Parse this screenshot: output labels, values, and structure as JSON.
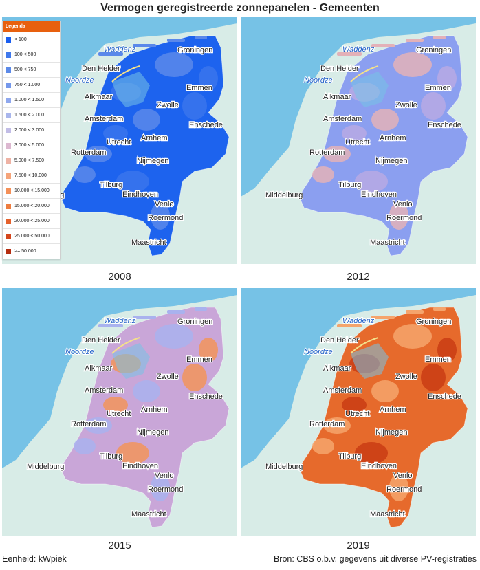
{
  "title": "Vermogen geregistreerde zonnepanelen - Gemeenten",
  "legend": {
    "title": "Legenda",
    "items": [
      {
        "label": "< 100",
        "color": "#1a5ef0"
      },
      {
        "label": "100 < 500",
        "color": "#3f78ec"
      },
      {
        "label": "500 < 750",
        "color": "#5c8ae8"
      },
      {
        "label": "750 < 1.000",
        "color": "#7598eb"
      },
      {
        "label": "1.000 < 1.500",
        "color": "#8fa8ee"
      },
      {
        "label": "1.500 < 2.000",
        "color": "#a9b6ec"
      },
      {
        "label": "2.000 < 3.000",
        "color": "#c2bde6"
      },
      {
        "label": "3.000 < 5.000",
        "color": "#dcb8d0"
      },
      {
        "label": "5.000 < 7.500",
        "color": "#eeb2a4"
      },
      {
        "label": "7.500 < 10.000",
        "color": "#f5a47a"
      },
      {
        "label": "10.000 < 15.000",
        "color": "#f49058"
      },
      {
        "label": "15.000 < 20.000",
        "color": "#ee7d3f"
      },
      {
        "label": "20.000 < 25.000",
        "color": "#e5612c"
      },
      {
        "label": "25.000 < 50.000",
        "color": "#d4461c"
      },
      {
        "label": ">= 50.000",
        "color": "#b52d10"
      }
    ]
  },
  "maps": [
    {
      "year": "2008",
      "fill": "#1d63ee",
      "fill2": "#3a74ec",
      "fill3": "#5a88ea"
    },
    {
      "year": "2012",
      "fill": "#8b9ff0",
      "fill2": "#b7a9e4",
      "fill3": "#e3b1b8"
    },
    {
      "year": "2015",
      "fill": "#c9a6d8",
      "fill2": "#f2945c",
      "fill3": "#a9b2ee"
    },
    {
      "year": "2019",
      "fill": "#e66a2c",
      "fill2": "#c93c14",
      "fill3": "#f5a46c"
    }
  ],
  "place_labels": {
    "waddenzee": "Waddenz",
    "noordzee": "Noordze",
    "den_helder": "Den Helder",
    "alkmaar": "Alkmaar",
    "amsterdam": "Amsterdam",
    "groningen": "Groningen",
    "emmen": "Emmen",
    "zwolle": "Zwolle",
    "enschede": "Enschede",
    "utrecht": "Utrecht",
    "rotterdam": "Rotterdam",
    "arnhem": "Arnhem",
    "nijmegen": "Nijmegen",
    "tilburg": "Tilburg",
    "eindhoven": "Eindhoven",
    "middelburg": "Middelburg",
    "venlo": "Venlo",
    "roermond": "Roermond",
    "maastricht": "Maastricht"
  },
  "colors": {
    "sea": "#76c2e6",
    "land_outside": "#d8ece7",
    "accent": "#e8600e"
  },
  "footer": {
    "unit": "Eenheid: kWpiek",
    "source": "Bron: CBS o.b.v. gegevens uit diverse PV-registraties"
  }
}
